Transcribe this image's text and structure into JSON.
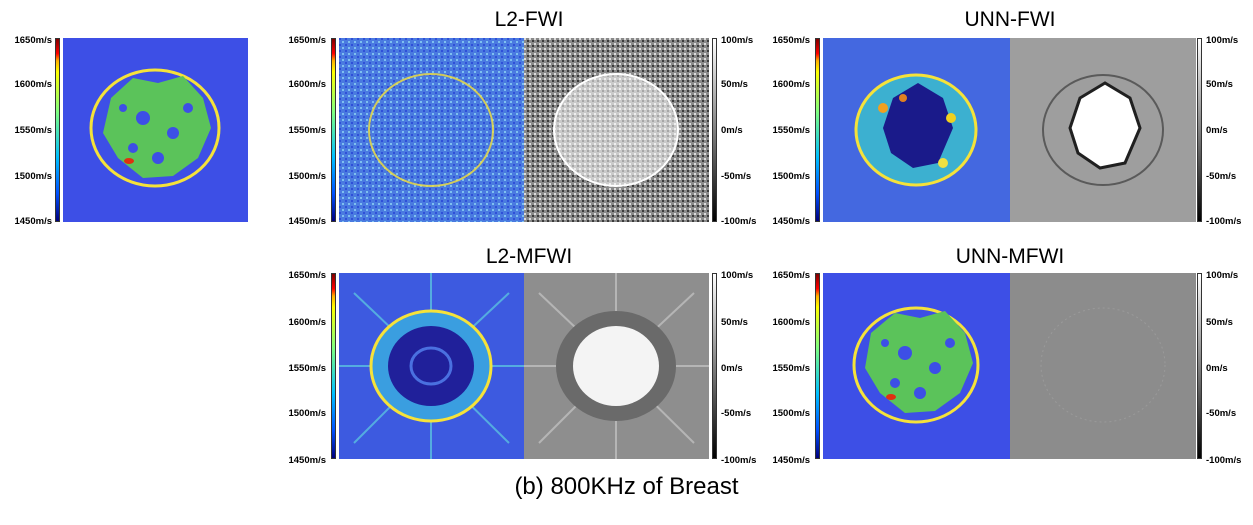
{
  "caption": "(b) 800KHz of Breast",
  "titles": {
    "l2_fwi": "L2-FWI",
    "unn_fwi": "UNN-FWI",
    "l2_mfwi": "L2-MFWI",
    "unn_mfwi": "UNN-MFWI"
  },
  "velocity_ticks": [
    "1650m/s",
    "1600m/s",
    "1550m/s",
    "1500m/s",
    "1450m/s"
  ],
  "error_ticks": [
    "100m/s",
    "50m/s",
    "0m/s",
    "-50m/s",
    "-100m/s"
  ],
  "colormaps": {
    "velocity": "jet",
    "error": "gray"
  },
  "colors": {
    "background_blue": "#3d4fe6",
    "tissue_green": "#5bc35a",
    "skin_yellow": "#f5e23a"
  }
}
